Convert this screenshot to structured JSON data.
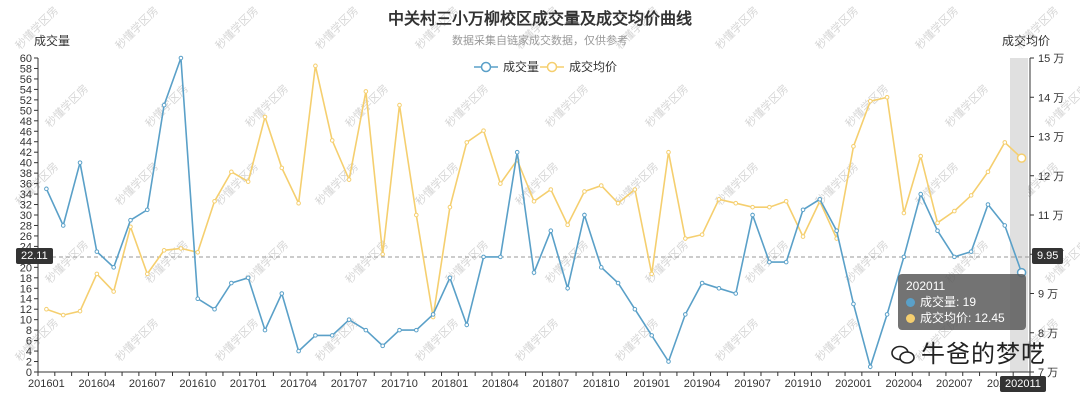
{
  "chart_data": {
    "type": "line",
    "title": "中关村三小万柳校区成交量及成交均价曲线",
    "subtitle": "数据采集自链家成交数据，仅供参考",
    "y_left_label": "成交量",
    "y_right_label": "成交均价",
    "y_left_range": [
      0,
      60
    ],
    "y_right_range": [
      7,
      15
    ],
    "y_right_unit": "万",
    "grid": false,
    "legend_position": "top-center",
    "x_tick_labels": [
      "201601",
      "201604",
      "201607",
      "201610",
      "201701",
      "201704",
      "201707",
      "201710",
      "201801",
      "201804",
      "201807",
      "201810",
      "201901",
      "201904",
      "201907",
      "201910",
      "202001",
      "202004",
      "202007",
      "202011"
    ],
    "series": [
      {
        "name": "成交量",
        "color": "#5aa0c8",
        "axis": "left",
        "values": [
          35,
          28,
          40,
          23,
          20,
          29,
          31,
          51,
          60,
          14,
          12,
          17,
          18,
          8,
          15,
          4,
          7,
          7,
          10,
          8,
          5,
          8,
          8,
          11,
          18,
          9,
          22,
          22,
          42,
          19,
          27,
          16,
          30,
          20,
          17,
          12,
          7,
          2,
          11,
          17,
          16,
          15,
          30,
          21,
          21,
          31,
          33,
          27,
          13,
          1,
          11,
          22,
          34,
          27,
          22,
          23,
          32,
          28,
          19
        ]
      },
      {
        "name": "成交均价",
        "color": "#f5cf6f",
        "axis": "right",
        "values": [
          8.6,
          8.45,
          8.55,
          9.5,
          9.05,
          10.7,
          9.5,
          10.1,
          10.15,
          10.05,
          11.35,
          12.1,
          11.85,
          13.5,
          12.2,
          11.3,
          14.8,
          12.9,
          11.9,
          14.15,
          10,
          13.8,
          11,
          8.4,
          11.2,
          12.85,
          13.15,
          11.8,
          12.4,
          11.35,
          11.65,
          10.75,
          11.6,
          11.75,
          11.3,
          11.65,
          9.5,
          12.6,
          10.4,
          10.5,
          11.4,
          11.3,
          11.2,
          11.2,
          11.35,
          10.45,
          11.35,
          10.4,
          12.75,
          13.9,
          14,
          11.05,
          12.5,
          10.8,
          11.1,
          11.5,
          12.1,
          12.85,
          12.45
        ]
      }
    ],
    "axis_pointer": {
      "left_value": "22.11",
      "right_value": "9.95"
    },
    "tooltip": {
      "period": "202011",
      "lines": [
        "成交量: 19",
        "成交均价: 12.45"
      ]
    },
    "watermark": "秒懂学区房"
  },
  "brand": {
    "text": "牛爸的梦呓"
  }
}
